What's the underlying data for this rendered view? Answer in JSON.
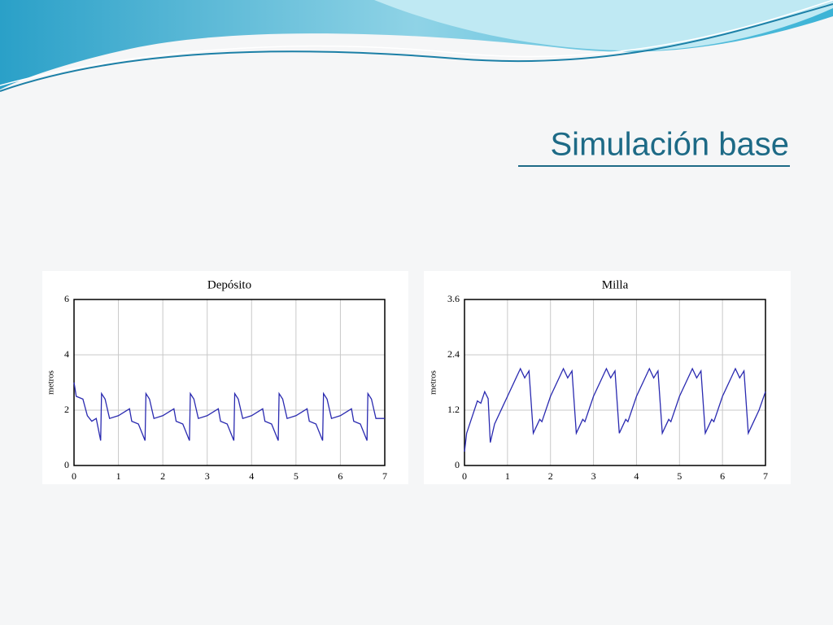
{
  "slide_title": "Simulación base",
  "chart_data": [
    {
      "type": "line",
      "title": "Depósito",
      "ylabel": "metros",
      "color": "#2a2ab0",
      "grid": true,
      "xlim": [
        0,
        7
      ],
      "xticks": [
        0,
        1,
        2,
        3,
        4,
        5,
        6,
        7
      ],
      "ylim": [
        0,
        6
      ],
      "yticks": [
        0,
        2,
        4,
        6
      ],
      "x": [
        0,
        0.05,
        0.2,
        0.3,
        0.4,
        0.5,
        0.6,
        0.62,
        0.7,
        0.8,
        1.0,
        1.25,
        1.3,
        1.45,
        1.6,
        1.62,
        1.7,
        1.8,
        2.0,
        2.25,
        2.3,
        2.45,
        2.6,
        2.62,
        2.7,
        2.8,
        3.0,
        3.25,
        3.3,
        3.45,
        3.6,
        3.62,
        3.7,
        3.8,
        4.0,
        4.25,
        4.3,
        4.45,
        4.6,
        4.62,
        4.7,
        4.8,
        5.0,
        5.25,
        5.3,
        5.45,
        5.6,
        5.62,
        5.7,
        5.8,
        6.0,
        6.25,
        6.3,
        6.45,
        6.6,
        6.62,
        6.7,
        6.8,
        7
      ],
      "values": [
        3.0,
        2.5,
        2.4,
        1.8,
        1.6,
        1.7,
        0.9,
        2.6,
        2.4,
        1.7,
        1.8,
        2.05,
        1.6,
        1.5,
        0.9,
        2.6,
        2.4,
        1.7,
        1.8,
        2.05,
        1.6,
        1.5,
        0.9,
        2.6,
        2.4,
        1.7,
        1.8,
        2.05,
        1.6,
        1.5,
        0.9,
        2.6,
        2.4,
        1.7,
        1.8,
        2.05,
        1.6,
        1.5,
        0.9,
        2.6,
        2.4,
        1.7,
        1.8,
        2.05,
        1.6,
        1.5,
        0.9,
        2.6,
        2.4,
        1.7,
        1.8,
        2.05,
        1.6,
        1.5,
        0.9,
        2.6,
        2.4,
        1.7,
        1.7
      ]
    },
    {
      "type": "line",
      "title": "Milla",
      "ylabel": "metros",
      "color": "#2a2ab0",
      "grid": true,
      "xlim": [
        0,
        7
      ],
      "xticks": [
        0,
        1,
        2,
        3,
        4,
        5,
        6,
        7
      ],
      "ylim": [
        0,
        3.6
      ],
      "yticks": [
        0,
        1.2,
        2.4,
        3.6
      ],
      "x": [
        0,
        0.05,
        0.3,
        0.38,
        0.47,
        0.55,
        0.6,
        0.7,
        0.9,
        1.0,
        1.3,
        1.4,
        1.5,
        1.6,
        1.75,
        1.8,
        2.0,
        2.3,
        2.4,
        2.5,
        2.6,
        2.75,
        2.8,
        3.0,
        3.3,
        3.4,
        3.5,
        3.6,
        3.75,
        3.8,
        4.0,
        4.3,
        4.4,
        4.5,
        4.6,
        4.75,
        4.8,
        5.0,
        5.3,
        5.4,
        5.5,
        5.6,
        5.75,
        5.8,
        6.0,
        6.3,
        6.4,
        6.5,
        6.6,
        6.75,
        6.85,
        7
      ],
      "values": [
        0.3,
        0.7,
        1.4,
        1.35,
        1.6,
        1.45,
        0.5,
        0.9,
        1.3,
        1.5,
        2.1,
        1.9,
        2.05,
        0.7,
        1.0,
        0.95,
        1.5,
        2.1,
        1.9,
        2.05,
        0.7,
        1.0,
        0.95,
        1.5,
        2.1,
        1.9,
        2.05,
        0.7,
        1.0,
        0.95,
        1.5,
        2.1,
        1.9,
        2.05,
        0.7,
        1.0,
        0.95,
        1.5,
        2.1,
        1.9,
        2.05,
        0.7,
        1.0,
        0.95,
        1.5,
        2.1,
        1.9,
        2.05,
        0.7,
        1.0,
        1.2,
        1.6
      ]
    }
  ]
}
